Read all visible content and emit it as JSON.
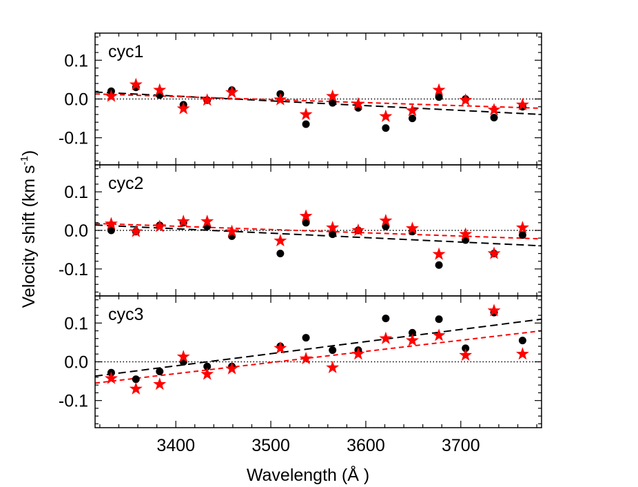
{
  "chart_data": {
    "type": "scatter",
    "xlabel": "Wavelength (Å )",
    "ylabel": {
      "main": "Velocity shift (km s",
      "sup": "-1",
      "close": ")"
    },
    "xlim": [
      3315,
      3785
    ],
    "ylim": [
      -0.17,
      0.17
    ],
    "x_ticks": [
      3400,
      3500,
      3600,
      3700
    ],
    "y_ticks": [
      -0.1,
      0.0,
      0.1
    ],
    "y_tick_labels": [
      "-0.1",
      "0.0",
      "0.1"
    ],
    "colors": {
      "circles": "#000000",
      "stars": "#ff0000",
      "circle_fit": "#000000",
      "star_fit": "#ff0000",
      "zero_line": "#000000"
    },
    "panels": [
      {
        "label": "cyc1",
        "circles": {
          "x": [
            3332,
            3358,
            3383,
            3408,
            3433,
            3459,
            3510,
            3537,
            3565,
            3592,
            3621,
            3649,
            3677,
            3705,
            3735,
            3765
          ],
          "y": [
            0.02,
            0.03,
            0.01,
            -0.015,
            -0.003,
            0.023,
            0.013,
            -0.065,
            -0.01,
            -0.023,
            -0.075,
            -0.05,
            0.005,
            0.0,
            -0.048,
            -0.02
          ]
        },
        "stars": {
          "x": [
            3332,
            3358,
            3383,
            3408,
            3433,
            3459,
            3510,
            3537,
            3565,
            3592,
            3621,
            3649,
            3677,
            3705,
            3735,
            3765
          ],
          "y": [
            0.007,
            0.037,
            0.023,
            -0.025,
            -0.003,
            0.017,
            -0.002,
            -0.04,
            0.007,
            -0.013,
            -0.045,
            -0.03,
            0.023,
            -0.003,
            -0.028,
            -0.015
          ]
        },
        "circle_fit": {
          "x": [
            3315,
            3785
          ],
          "y": [
            0.018,
            -0.04
          ]
        },
        "star_fit": {
          "x": [
            3315,
            3785
          ],
          "y": [
            0.013,
            -0.024
          ]
        }
      },
      {
        "label": "cyc2",
        "circles": {
          "x": [
            3332,
            3358,
            3383,
            3408,
            3433,
            3459,
            3510,
            3537,
            3565,
            3592,
            3621,
            3649,
            3677,
            3705,
            3735,
            3765
          ],
          "y": [
            0.0,
            -0.003,
            0.013,
            0.02,
            0.01,
            -0.015,
            -0.06,
            0.02,
            -0.01,
            0.0,
            0.01,
            -0.003,
            -0.09,
            -0.025,
            -0.06,
            -0.012
          ]
        },
        "stars": {
          "x": [
            3332,
            3358,
            3383,
            3408,
            3433,
            3459,
            3510,
            3537,
            3565,
            3592,
            3621,
            3649,
            3677,
            3705,
            3735,
            3765
          ],
          "y": [
            0.017,
            -0.003,
            0.01,
            0.023,
            0.023,
            -0.003,
            -0.027,
            0.037,
            0.007,
            0.0,
            0.025,
            0.005,
            -0.062,
            -0.01,
            -0.06,
            0.007
          ]
        },
        "circle_fit": {
          "x": [
            3315,
            3785
          ],
          "y": [
            0.014,
            -0.04
          ]
        },
        "star_fit": {
          "x": [
            3315,
            3785
          ],
          "y": [
            0.018,
            -0.022
          ]
        }
      },
      {
        "label": "cyc3",
        "circles": {
          "x": [
            3332,
            3358,
            3383,
            3408,
            3433,
            3459,
            3510,
            3537,
            3565,
            3592,
            3621,
            3649,
            3677,
            3705,
            3735,
            3765
          ],
          "y": [
            -0.028,
            -0.045,
            -0.025,
            0.0,
            -0.012,
            -0.012,
            0.04,
            0.062,
            0.03,
            0.03,
            0.112,
            0.075,
            0.11,
            0.035,
            0.127,
            0.055
          ]
        },
        "stars": {
          "x": [
            3332,
            3358,
            3383,
            3408,
            3433,
            3459,
            3510,
            3537,
            3565,
            3592,
            3621,
            3649,
            3677,
            3705,
            3735,
            3765
          ],
          "y": [
            -0.043,
            -0.07,
            -0.058,
            0.013,
            -0.032,
            -0.018,
            0.035,
            0.008,
            -0.015,
            0.02,
            0.06,
            0.055,
            0.068,
            0.017,
            0.132,
            0.02
          ]
        },
        "circle_fit": {
          "x": [
            3315,
            3785
          ],
          "y": [
            -0.037,
            0.11
          ]
        },
        "star_fit": {
          "x": [
            3315,
            3785
          ],
          "y": [
            -0.055,
            0.08
          ]
        }
      }
    ]
  }
}
